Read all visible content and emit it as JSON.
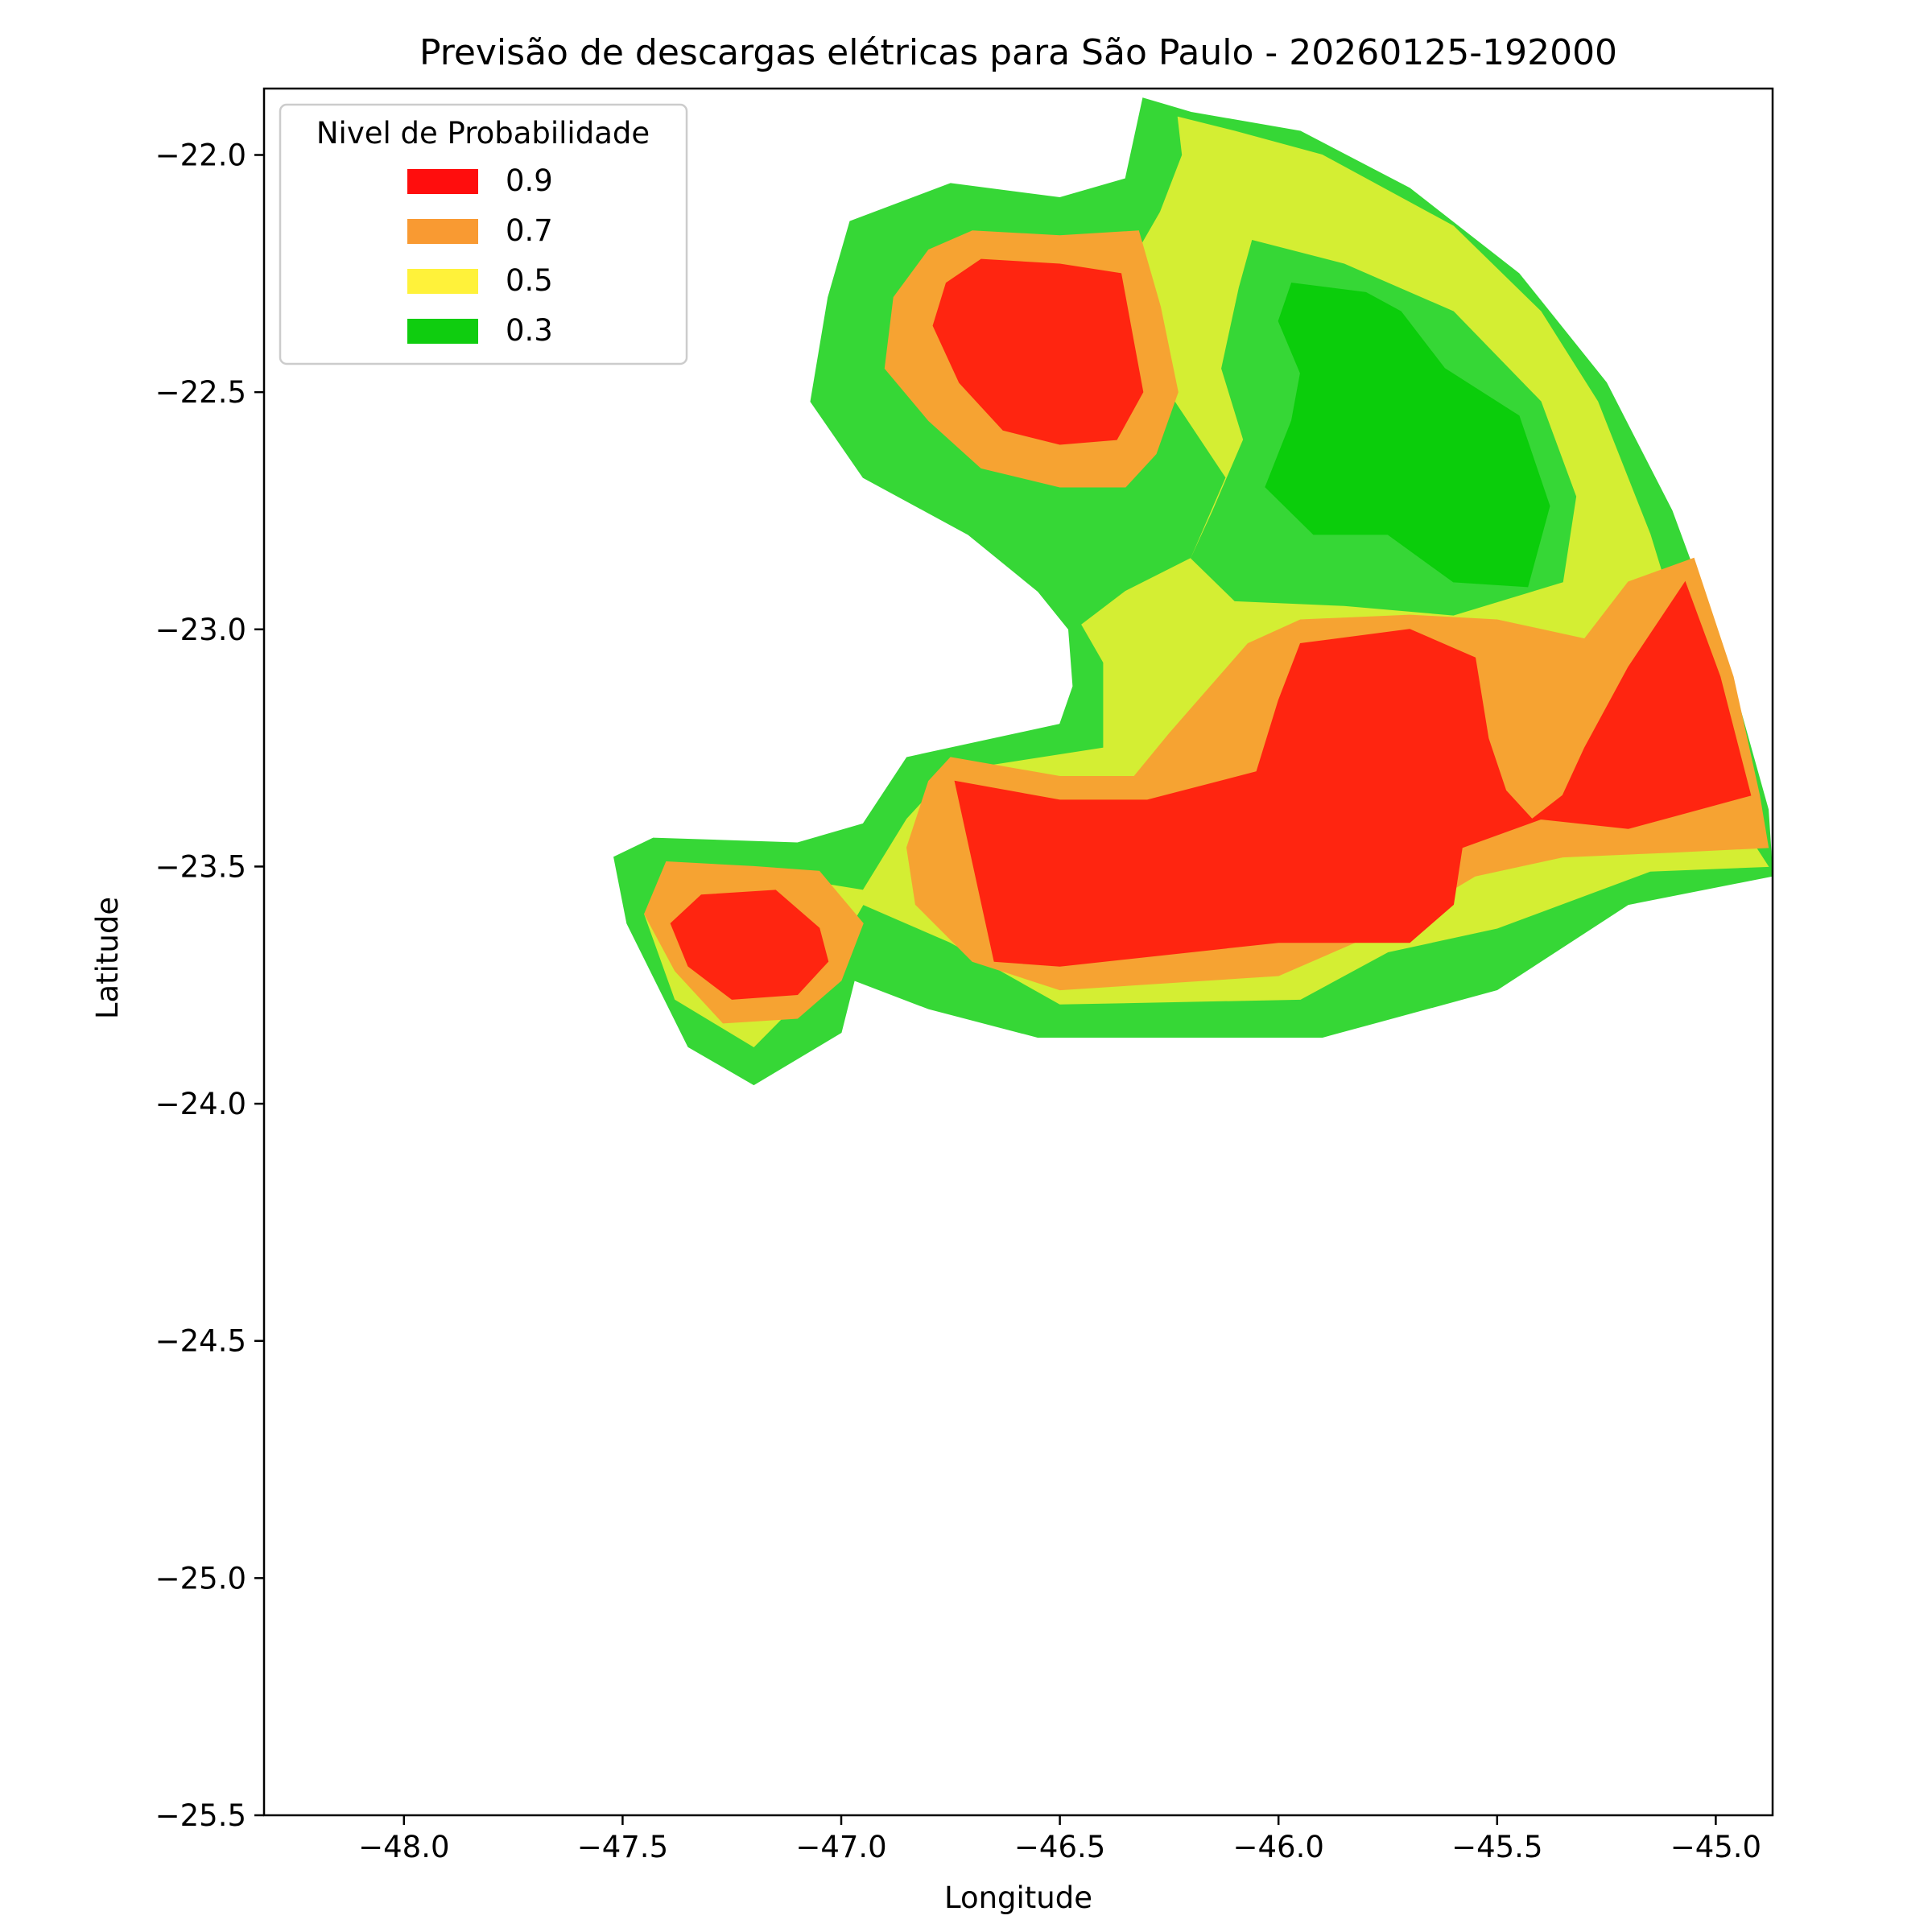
{
  "chart_data": {
    "type": "heatmap",
    "title": "Previsão de descargas elétricas para São Paulo - 20260125-192000",
    "xlabel": "Longitude",
    "ylabel": "Latitude",
    "xlim": [
      -48.32,
      -44.87
    ],
    "ylim": [
      -25.5,
      -21.86
    ],
    "xticks": [
      -48.0,
      -47.5,
      -47.0,
      -46.5,
      -46.0,
      -45.5,
      -45.0
    ],
    "xtick_labels": [
      "−48.0",
      "−47.5",
      "−47.0",
      "−46.5",
      "−46.0",
      "−45.5",
      "−45.0"
    ],
    "yticks": [
      -22.0,
      -22.5,
      -23.0,
      -23.5,
      -24.0,
      -24.5,
      -25.0,
      -25.5
    ],
    "ytick_labels": [
      "−22.0",
      "−22.5",
      "−23.0",
      "−23.5",
      "−24.0",
      "−24.5",
      "−25.0",
      "−25.5"
    ],
    "grid": false,
    "legend": {
      "title": "Nivel de Probabilidade",
      "placement": "top-left",
      "entries": [
        {
          "label": "0.9",
          "color": "#ff0d0d"
        },
        {
          "label": "0.7",
          "color": "#f99a32"
        },
        {
          "label": "0.5",
          "color": "#fff23a"
        },
        {
          "label": "0.3",
          "color": "#0fcd0f"
        }
      ]
    },
    "fill_colors": {
      "outer": "#36d736",
      "low": "#0bcd0b",
      "mid": "#d4ee33",
      "high": "#f6a332",
      "max": "#ff2510"
    },
    "regions": [
      {
        "level": "outer",
        "polygon": [
          [
            -46.31,
            -21.88
          ],
          [
            -46.2,
            -21.91
          ],
          [
            -45.95,
            -21.95
          ],
          [
            -45.7,
            -22.07
          ],
          [
            -45.45,
            -22.25
          ],
          [
            -45.25,
            -22.48
          ],
          [
            -45.1,
            -22.75
          ],
          [
            -44.98,
            -23.05
          ],
          [
            -44.88,
            -23.38
          ],
          [
            -44.87,
            -23.52
          ],
          [
            -45.2,
            -23.58
          ],
          [
            -45.5,
            -23.76
          ],
          [
            -45.9,
            -23.86
          ],
          [
            -46.55,
            -23.86
          ],
          [
            -46.8,
            -23.8
          ],
          [
            -46.97,
            -23.74
          ],
          [
            -47.0,
            -23.85
          ],
          [
            -47.2,
            -23.96
          ],
          [
            -47.35,
            -23.88
          ],
          [
            -47.49,
            -23.62
          ],
          [
            -47.52,
            -23.48
          ],
          [
            -47.43,
            -23.44
          ],
          [
            -47.1,
            -23.45
          ],
          [
            -46.95,
            -23.41
          ],
          [
            -46.85,
            -23.27
          ],
          [
            -46.5,
            -23.2
          ],
          [
            -46.47,
            -23.12
          ],
          [
            -46.48,
            -23.0
          ],
          [
            -46.55,
            -22.92
          ],
          [
            -46.71,
            -22.8
          ],
          [
            -46.95,
            -22.68
          ],
          [
            -47.07,
            -22.52
          ],
          [
            -47.03,
            -22.3
          ],
          [
            -46.98,
            -22.14
          ],
          [
            -46.75,
            -22.06
          ],
          [
            -46.5,
            -22.09
          ],
          [
            -46.35,
            -22.05
          ],
          [
            -46.31,
            -21.88
          ]
        ]
      },
      {
        "level": "mid",
        "polygon": [
          [
            -46.23,
            -21.92
          ],
          [
            -46.1,
            -21.95
          ],
          [
            -45.9,
            -22.0
          ],
          [
            -45.6,
            -22.15
          ],
          [
            -45.4,
            -22.33
          ],
          [
            -45.27,
            -22.52
          ],
          [
            -45.15,
            -22.8
          ],
          [
            -45.05,
            -23.1
          ],
          [
            -44.95,
            -23.4
          ],
          [
            -44.88,
            -23.5
          ],
          [
            -45.15,
            -23.51
          ],
          [
            -45.5,
            -23.63
          ],
          [
            -45.75,
            -23.68
          ],
          [
            -45.95,
            -23.78
          ],
          [
            -46.5,
            -23.79
          ],
          [
            -46.75,
            -23.66
          ],
          [
            -46.95,
            -23.58
          ],
          [
            -47.05,
            -23.74
          ],
          [
            -47.2,
            -23.88
          ],
          [
            -47.38,
            -23.78
          ],
          [
            -47.45,
            -23.6
          ],
          [
            -47.4,
            -23.52
          ],
          [
            -47.15,
            -23.52
          ],
          [
            -46.95,
            -23.55
          ],
          [
            -46.85,
            -23.4
          ],
          [
            -46.75,
            -23.3
          ],
          [
            -46.4,
            -23.25
          ],
          [
            -46.4,
            -23.07
          ],
          [
            -46.45,
            -22.99
          ],
          [
            -46.35,
            -22.92
          ],
          [
            -46.2,
            -22.85
          ],
          [
            -46.12,
            -22.68
          ],
          [
            -46.25,
            -22.5
          ],
          [
            -46.32,
            -22.38
          ],
          [
            -46.32,
            -22.2
          ],
          [
            -46.27,
            -22.12
          ],
          [
            -46.22,
            -22.0
          ],
          [
            -46.23,
            -21.92
          ]
        ]
      },
      {
        "level": "outer",
        "polygon": [
          [
            -46.06,
            -22.18
          ],
          [
            -45.85,
            -22.23
          ],
          [
            -45.6,
            -22.33
          ],
          [
            -45.4,
            -22.52
          ],
          [
            -45.32,
            -22.72
          ],
          [
            -45.35,
            -22.9
          ],
          [
            -45.6,
            -22.97
          ],
          [
            -45.85,
            -22.95
          ],
          [
            -46.1,
            -22.94
          ],
          [
            -46.2,
            -22.85
          ],
          [
            -46.15,
            -22.75
          ],
          [
            -46.08,
            -22.6
          ],
          [
            -46.13,
            -22.45
          ],
          [
            -46.09,
            -22.28
          ],
          [
            -46.06,
            -22.18
          ]
        ]
      },
      {
        "level": "low",
        "polygon": [
          [
            -45.97,
            -22.27
          ],
          [
            -45.8,
            -22.29
          ],
          [
            -45.72,
            -22.33
          ],
          [
            -45.62,
            -22.45
          ],
          [
            -45.45,
            -22.55
          ],
          [
            -45.38,
            -22.74
          ],
          [
            -45.43,
            -22.91
          ],
          [
            -45.6,
            -22.9
          ],
          [
            -45.75,
            -22.8
          ],
          [
            -45.92,
            -22.8
          ],
          [
            -46.03,
            -22.7
          ],
          [
            -45.97,
            -22.56
          ],
          [
            -45.95,
            -22.46
          ],
          [
            -46.0,
            -22.35
          ],
          [
            -45.97,
            -22.27
          ]
        ]
      },
      {
        "level": "high",
        "polygon": [
          [
            -46.7,
            -22.16
          ],
          [
            -46.5,
            -22.17
          ],
          [
            -46.32,
            -22.16
          ],
          [
            -46.27,
            -22.32
          ],
          [
            -46.23,
            -22.5
          ],
          [
            -46.28,
            -22.63
          ],
          [
            -46.35,
            -22.7
          ],
          [
            -46.5,
            -22.7
          ],
          [
            -46.68,
            -22.66
          ],
          [
            -46.8,
            -22.56
          ],
          [
            -46.9,
            -22.45
          ],
          [
            -46.88,
            -22.3
          ],
          [
            -46.8,
            -22.2
          ],
          [
            -46.7,
            -22.16
          ]
        ]
      },
      {
        "level": "max",
        "polygon": [
          [
            -46.68,
            -22.22
          ],
          [
            -46.5,
            -22.23
          ],
          [
            -46.36,
            -22.25
          ],
          [
            -46.33,
            -22.4
          ],
          [
            -46.31,
            -22.5
          ],
          [
            -46.37,
            -22.6
          ],
          [
            -46.5,
            -22.61
          ],
          [
            -46.63,
            -22.58
          ],
          [
            -46.73,
            -22.48
          ],
          [
            -46.79,
            -22.36
          ],
          [
            -46.76,
            -22.27
          ],
          [
            -46.68,
            -22.22
          ]
        ]
      },
      {
        "level": "high",
        "polygon": [
          [
            -47.4,
            -23.49
          ],
          [
            -47.2,
            -23.5
          ],
          [
            -47.05,
            -23.51
          ],
          [
            -46.95,
            -23.62
          ],
          [
            -47.0,
            -23.74
          ],
          [
            -47.1,
            -23.82
          ],
          [
            -47.27,
            -23.83
          ],
          [
            -47.38,
            -23.72
          ],
          [
            -47.45,
            -23.6
          ],
          [
            -47.4,
            -23.49
          ]
        ]
      },
      {
        "level": "max",
        "polygon": [
          [
            -47.32,
            -23.56
          ],
          [
            -47.15,
            -23.55
          ],
          [
            -47.05,
            -23.63
          ],
          [
            -47.03,
            -23.7
          ],
          [
            -47.1,
            -23.77
          ],
          [
            -47.25,
            -23.78
          ],
          [
            -47.35,
            -23.71
          ],
          [
            -47.39,
            -23.62
          ],
          [
            -47.32,
            -23.56
          ]
        ]
      },
      {
        "level": "high",
        "polygon": [
          [
            -46.75,
            -23.27
          ],
          [
            -46.5,
            -23.31
          ],
          [
            -46.33,
            -23.31
          ],
          [
            -46.25,
            -23.22
          ],
          [
            -46.07,
            -23.03
          ],
          [
            -45.95,
            -22.98
          ],
          [
            -45.7,
            -22.97
          ],
          [
            -45.5,
            -22.98
          ],
          [
            -45.3,
            -23.02
          ],
          [
            -45.2,
            -22.9
          ],
          [
            -45.05,
            -22.85
          ],
          [
            -44.96,
            -23.1
          ],
          [
            -44.9,
            -23.35
          ],
          [
            -44.88,
            -23.46
          ],
          [
            -45.1,
            -23.47
          ],
          [
            -45.35,
            -23.48
          ],
          [
            -45.55,
            -23.52
          ],
          [
            -45.75,
            -23.63
          ],
          [
            -46.0,
            -23.73
          ],
          [
            -46.5,
            -23.76
          ],
          [
            -46.7,
            -23.7
          ],
          [
            -46.83,
            -23.58
          ],
          [
            -46.85,
            -23.46
          ],
          [
            -46.8,
            -23.32
          ],
          [
            -46.75,
            -23.27
          ]
        ]
      },
      {
        "level": "max",
        "polygon": [
          [
            -46.74,
            -23.32
          ],
          [
            -46.5,
            -23.36
          ],
          [
            -46.3,
            -23.36
          ],
          [
            -46.05,
            -23.3
          ],
          [
            -46.0,
            -23.15
          ],
          [
            -45.95,
            -23.03
          ],
          [
            -45.7,
            -23.0
          ],
          [
            -45.55,
            -23.06
          ],
          [
            -45.52,
            -23.23
          ],
          [
            -45.48,
            -23.34
          ],
          [
            -45.42,
            -23.4
          ],
          [
            -45.35,
            -23.35
          ],
          [
            -45.3,
            -23.25
          ],
          [
            -45.2,
            -23.08
          ],
          [
            -45.07,
            -22.9
          ],
          [
            -44.99,
            -23.1
          ],
          [
            -44.92,
            -23.35
          ],
          [
            -45.2,
            -23.42
          ],
          [
            -45.4,
            -23.4
          ],
          [
            -45.58,
            -23.46
          ],
          [
            -45.6,
            -23.58
          ],
          [
            -45.7,
            -23.66
          ],
          [
            -46.0,
            -23.66
          ],
          [
            -46.5,
            -23.71
          ],
          [
            -46.65,
            -23.7
          ],
          [
            -46.74,
            -23.32
          ]
        ]
      }
    ]
  }
}
